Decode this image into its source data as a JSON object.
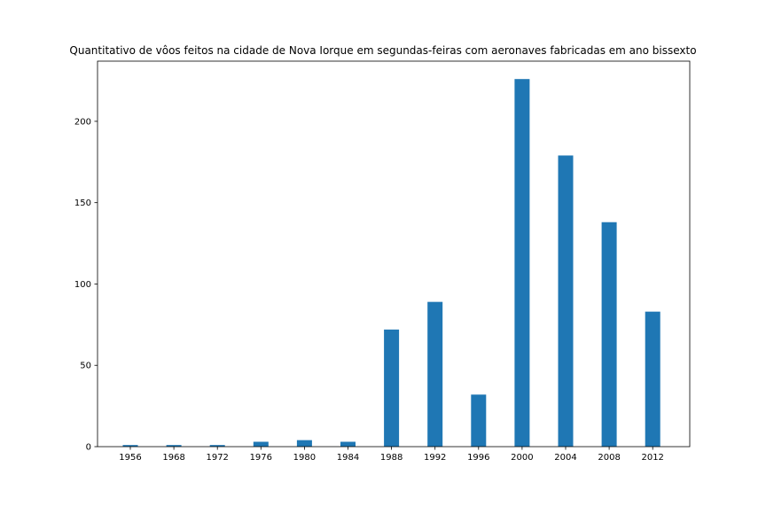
{
  "chart_data": {
    "type": "bar",
    "title": "Quantitativo de vôos feitos na cidade de Nova Iorque em segundas-feiras com aeronaves fabricadas em ano bissexto",
    "xlabel": "",
    "ylabel": "",
    "categories": [
      "1956",
      "1968",
      "1972",
      "1976",
      "1980",
      "1984",
      "1988",
      "1992",
      "1996",
      "2000",
      "2004",
      "2008",
      "2012"
    ],
    "values": [
      1,
      1,
      1,
      3,
      4,
      3,
      72,
      89,
      32,
      226,
      179,
      138,
      83
    ],
    "ylim": [
      0,
      237
    ],
    "yticks": [
      0,
      50,
      100,
      150,
      200
    ],
    "bar_color": "#1f77b4",
    "grid": false,
    "legend": false
  }
}
